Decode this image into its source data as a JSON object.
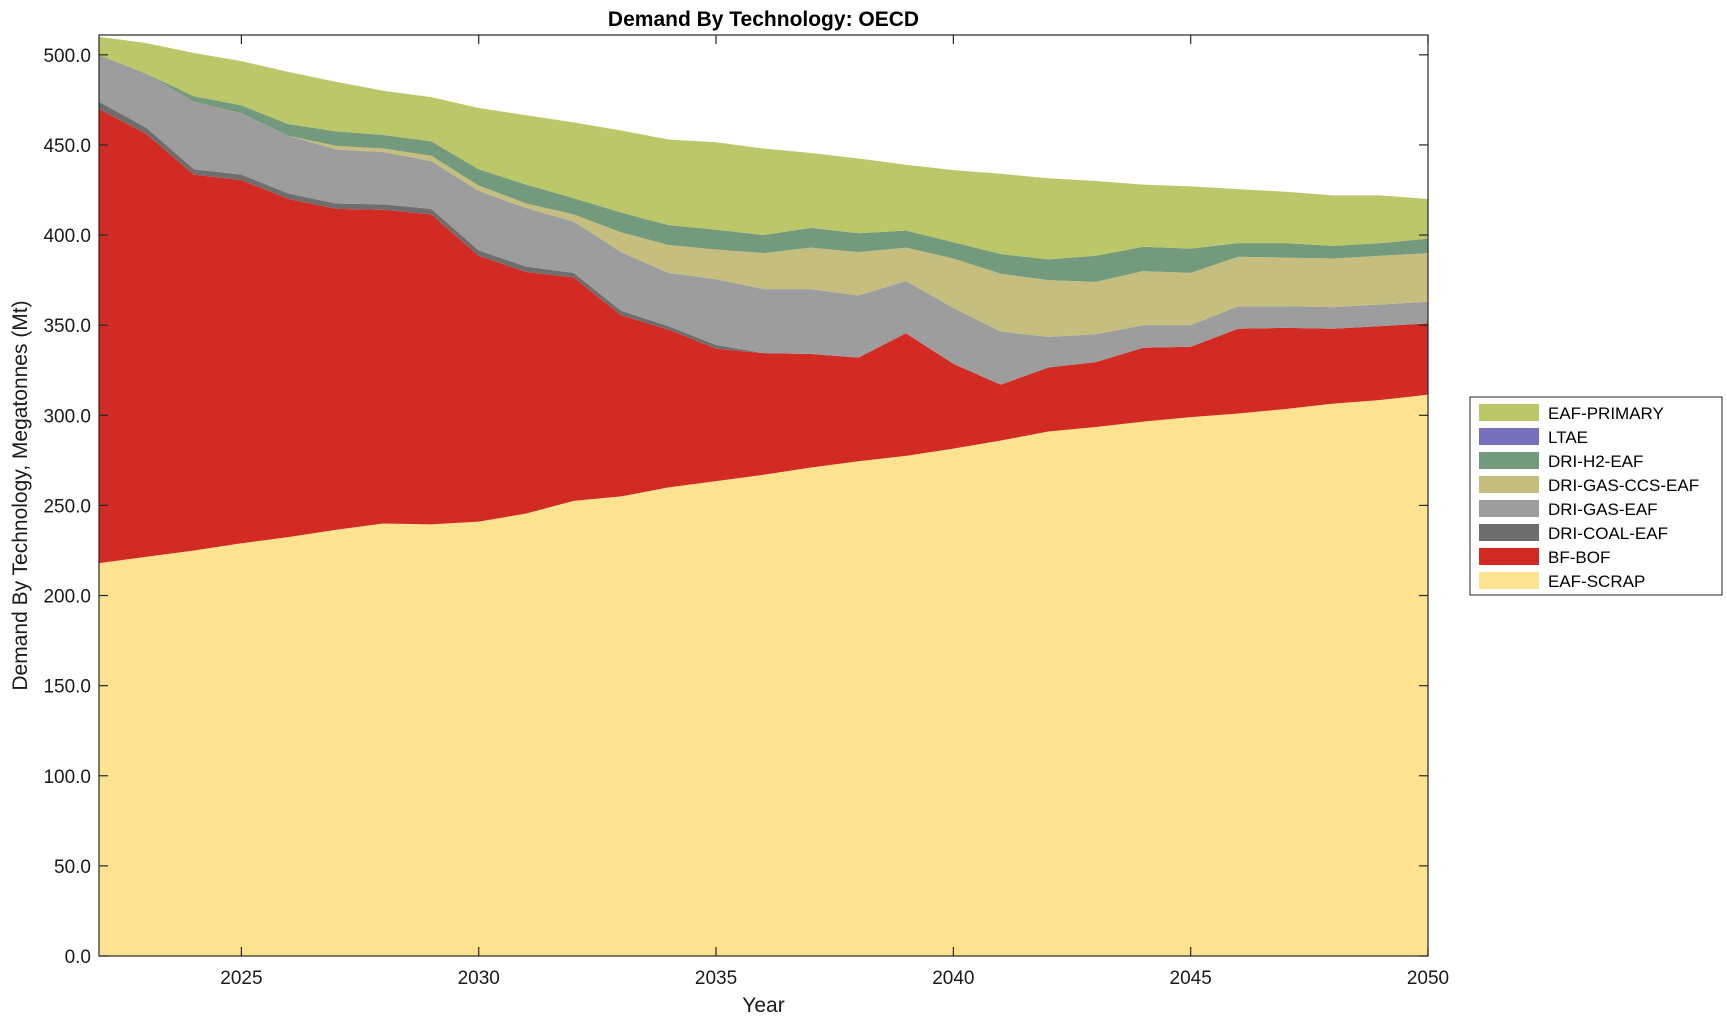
{
  "chart_data": {
    "type": "area",
    "stacked": true,
    "title": "Demand By Technology: OECD",
    "xlabel": "Year",
    "ylabel": "Demand By Technology, Megatonnes (Mt)",
    "xlim": [
      2022,
      2050
    ],
    "ylim": [
      0,
      511
    ],
    "xticks": [
      2025,
      2030,
      2035,
      2040,
      2045,
      2050
    ],
    "yticks": [
      "0.0",
      "50.0",
      "100.0",
      "150.0",
      "200.0",
      "250.0",
      "300.0",
      "350.0",
      "400.0",
      "450.0",
      "500.0"
    ],
    "grid": false,
    "legend_position": "right",
    "x": [
      2022,
      2023,
      2024,
      2025,
      2026,
      2027,
      2028,
      2029,
      2030,
      2031,
      2032,
      2033,
      2034,
      2035,
      2036,
      2037,
      2038,
      2039,
      2040,
      2041,
      2042,
      2043,
      2044,
      2045,
      2046,
      2047,
      2048,
      2049,
      2050
    ],
    "series": [
      {
        "name": "EAF-SCRAP",
        "color": "#fde390",
        "values": [
          218,
          221.5,
          225,
          229,
          232.5,
          236.5,
          240,
          239.5,
          241,
          245.5,
          252.5,
          255,
          260,
          263.5,
          267,
          271,
          274.5,
          277.5,
          281.5,
          286,
          291,
          293.5,
          296.5,
          299,
          301,
          303.5,
          306.5,
          308.5,
          311.5
        ]
      },
      {
        "name": "BF-BOF",
        "color": "#d22b23",
        "values": [
          252,
          234.5,
          208.5,
          201.5,
          187.5,
          178,
          174,
          172,
          147.5,
          134,
          124,
          100.5,
          87.5,
          73.5,
          67.5,
          63,
          57.5,
          68,
          47,
          31,
          35.5,
          36,
          41,
          39,
          47,
          45,
          41.5,
          41,
          39.5
        ]
      },
      {
        "name": "DRI-COAL-EAF",
        "color": "#6e6e6e",
        "values": [
          4,
          3.5,
          3,
          3,
          3,
          3,
          3,
          3,
          3,
          3,
          2.5,
          2.5,
          2,
          2,
          0,
          0,
          0,
          0,
          0,
          0,
          0,
          0,
          0,
          0,
          0,
          0,
          0,
          0,
          0
        ]
      },
      {
        "name": "DRI-GAS-EAF",
        "color": "#9d9d9d",
        "values": [
          26,
          30,
          37.5,
          34,
          32,
          30,
          29,
          26.5,
          33,
          32.5,
          28.5,
          32.5,
          29.5,
          36.5,
          35.5,
          36,
          34.5,
          29,
          31,
          29.5,
          17,
          15.5,
          12.5,
          12,
          12.5,
          12,
          12,
          12,
          12
        ]
      },
      {
        "name": "DRI-GAS-CCS-EAF",
        "color": "#c6be7e",
        "values": [
          0,
          0,
          0,
          0,
          0,
          2,
          2,
          3,
          3,
          2.5,
          4,
          11,
          15.5,
          16.5,
          20,
          23,
          24,
          18.5,
          27.5,
          32,
          31.5,
          29,
          30,
          29,
          27.5,
          27,
          27,
          27,
          27
        ]
      },
      {
        "name": "DRI-H2-EAF",
        "color": "#739a7c",
        "values": [
          0,
          0,
          3,
          4.5,
          6.5,
          8,
          7.5,
          8,
          9,
          10.5,
          9,
          11,
          11,
          11,
          10,
          11,
          10.5,
          9.5,
          9,
          11,
          11.5,
          14.5,
          13.5,
          13.5,
          7.5,
          8,
          7,
          7,
          8
        ]
      },
      {
        "name": "LTAE",
        "color": "#7670bd",
        "values": [
          0,
          0,
          0,
          0,
          0,
          0,
          0,
          0,
          0,
          0,
          0,
          0,
          0,
          0,
          0,
          0,
          0,
          0,
          0,
          0,
          0,
          0,
          0,
          0,
          0,
          0,
          0,
          0,
          0
        ]
      },
      {
        "name": "EAF-PRIMARY",
        "color": "#bcc769",
        "values": [
          10,
          17,
          24,
          24.5,
          29,
          27.5,
          24.5,
          24.5,
          34,
          38.5,
          42,
          45.5,
          47.5,
          48.5,
          48,
          41.5,
          41.5,
          36.5,
          40,
          44.5,
          45,
          41.5,
          34.5,
          34.5,
          30,
          28.5,
          28,
          26.5,
          22
        ]
      }
    ]
  }
}
